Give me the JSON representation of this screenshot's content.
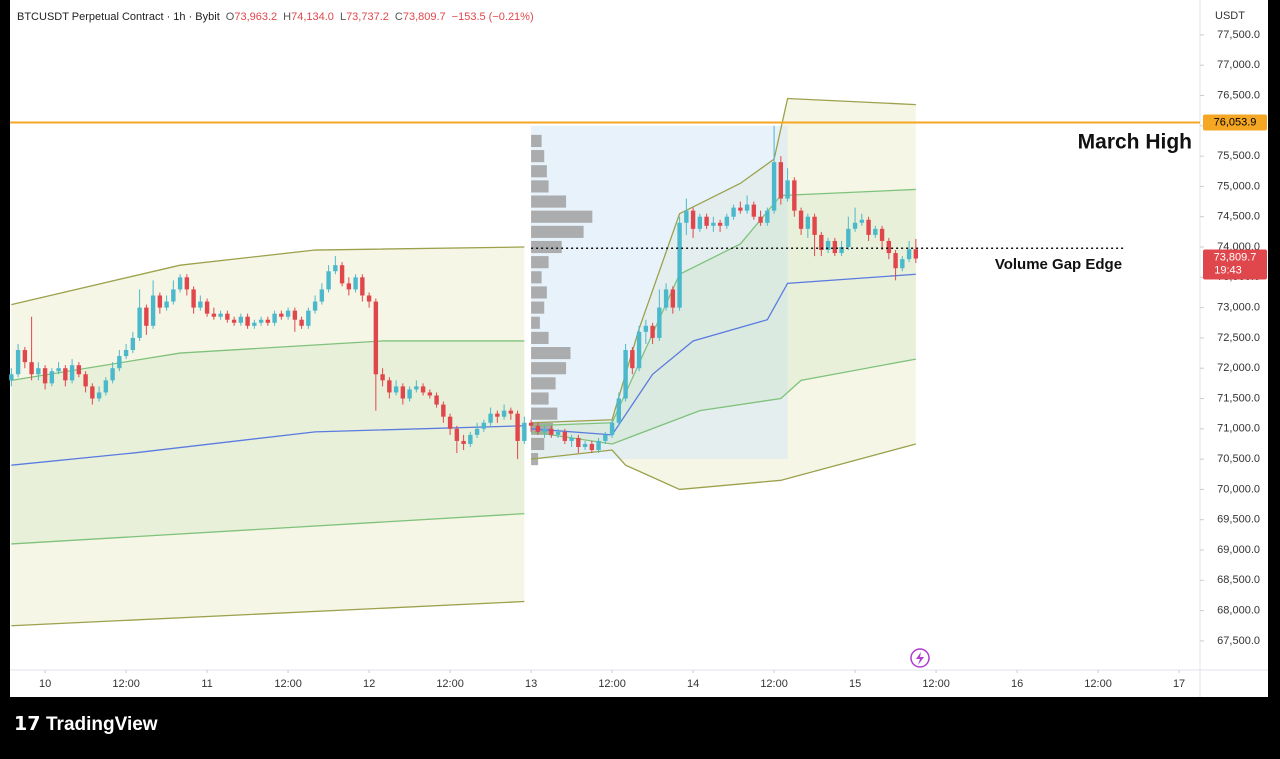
{
  "chart_data": {
    "type": "candlestick",
    "header": {
      "title": "BTCUSDT Perpetual Contract · 1h · Bybit",
      "items": [
        {
          "label": "O",
          "value": "73,963.2"
        },
        {
          "label": "H",
          "value": "74,134.0"
        },
        {
          "label": "L",
          "value": "73,737.2"
        },
        {
          "label": "C",
          "value": "73,809.7"
        }
      ],
      "change": "−153.5 (−0.21%)"
    },
    "y_unit": "USDT",
    "ylim": [
      67020,
      78076
    ],
    "yticks": [
      {
        "value": 67500,
        "label": "67,500.0"
      },
      {
        "value": 68000,
        "label": "68,000.0"
      },
      {
        "value": 68500,
        "label": "68,500.0"
      },
      {
        "value": 69000,
        "label": "69,000.0"
      },
      {
        "value": 69500,
        "label": "69,500.0"
      },
      {
        "value": 70000,
        "label": "70,000.0"
      },
      {
        "value": 70500,
        "label": "70,500.0"
      },
      {
        "value": 71000,
        "label": "71,000.0"
      },
      {
        "value": 71500,
        "label": "71,500.0"
      },
      {
        "value": 72000,
        "label": "72,000.0"
      },
      {
        "value": 72500,
        "label": "72,500.0"
      },
      {
        "value": 73000,
        "label": "73,000.0"
      },
      {
        "value": 73500,
        "label": "73,500.0"
      },
      {
        "value": 74000,
        "label": "74,000.0"
      },
      {
        "value": 74500,
        "label": "74,500.0"
      },
      {
        "value": 75000,
        "label": "75,000.0"
      },
      {
        "value": 75500,
        "label": "75,500.0"
      },
      {
        "value": 76000,
        "label": "76,000.0"
      },
      {
        "value": 76500,
        "label": "76,500.0"
      },
      {
        "value": 77000,
        "label": "77,000.0"
      },
      {
        "value": 77500,
        "label": "77,500.0"
      }
    ],
    "xlim": [
      -0.2,
      176.1
    ],
    "xticks": [
      {
        "value": 5,
        "label": "10"
      },
      {
        "value": 17,
        "label": "12:00"
      },
      {
        "value": 29,
        "label": "11"
      },
      {
        "value": 41,
        "label": "12:00"
      },
      {
        "value": 53,
        "label": "12"
      },
      {
        "value": 65,
        "label": "12:00"
      },
      {
        "value": 77,
        "label": "13"
      },
      {
        "value": 89,
        "label": "12:00"
      },
      {
        "value": 101,
        "label": "14"
      },
      {
        "value": 113,
        "label": "12:00"
      },
      {
        "value": 125,
        "label": "15"
      },
      {
        "value": 137,
        "label": "12:00"
      },
      {
        "value": 149,
        "label": "16"
      },
      {
        "value": 161,
        "label": "12:00"
      },
      {
        "value": 173,
        "label": "17"
      }
    ],
    "grid": false,
    "up_color": "#4cb8cc",
    "down_color": "#e0474c",
    "open": [
      71800,
      71900,
      72300,
      72100,
      71900,
      72000,
      71750,
      71950,
      72000,
      71800,
      72050,
      71900,
      71700,
      71500,
      71600,
      71800,
      72000,
      72200,
      72300,
      72500,
      73000,
      72700,
      73200,
      73000,
      73100,
      73300,
      73500,
      73300,
      73000,
      73100,
      72900,
      72850,
      72900,
      72800,
      72750,
      72850,
      72700,
      72750,
      72800,
      72750,
      72900,
      72850,
      72950,
      72800,
      72700,
      72950,
      73100,
      73300,
      73600,
      73700,
      73400,
      73300,
      73500,
      73200,
      73100,
      71900,
      71800,
      71600,
      71700,
      71500,
      71650,
      71700,
      71600,
      71550,
      71400,
      71200,
      71000,
      70800,
      70750,
      70900,
      71000,
      71100,
      71250,
      71200,
      71300,
      71250,
      70800,
      71100,
      71050,
      70950,
      71000,
      70900,
      70950,
      70800,
      70850,
      70700,
      70750,
      70650,
      70800,
      70900,
      71100,
      71500,
      72300,
      72000,
      72600,
      72700,
      72500,
      73000,
      73300,
      73000,
      74400,
      74600,
      74300,
      74500,
      74350,
      74400,
      74350,
      74500,
      74650,
      74600,
      74700,
      74500,
      74400,
      74600,
      75400,
      74800,
      75100,
      74600,
      74300,
      74500,
      74200,
      73950,
      74100,
      73900,
      74000,
      74300,
      74400,
      74450,
      74200,
      74300,
      74100,
      73900,
      73650,
      73800,
      73963.2
    ],
    "high": [
      72000,
      72400,
      72350,
      72850,
      72100,
      72050,
      72000,
      72100,
      72050,
      72150,
      72100,
      71950,
      71750,
      71700,
      71850,
      72100,
      72300,
      72400,
      72600,
      73300,
      73050,
      73450,
      73250,
      73200,
      73450,
      73550,
      73550,
      73350,
      73200,
      73150,
      73000,
      72950,
      72950,
      72850,
      72900,
      72900,
      72800,
      72850,
      72850,
      72950,
      72950,
      73000,
      73000,
      72850,
      73000,
      73200,
      73400,
      73700,
      73850,
      73750,
      73500,
      73550,
      73550,
      73250,
      73150,
      72000,
      71850,
      71800,
      71750,
      71700,
      71800,
      71750,
      71650,
      71600,
      71450,
      71250,
      71050,
      70900,
      70950,
      71100,
      71150,
      71350,
      71300,
      71400,
      71350,
      71300,
      71200,
      71150,
      71100,
      71050,
      71050,
      71000,
      71000,
      70900,
      70900,
      70800,
      70800,
      70850,
      70950,
      71150,
      71600,
      72400,
      72350,
      72700,
      72800,
      72750,
      73300,
      73400,
      73350,
      74500,
      74800,
      74650,
      74550,
      74550,
      74500,
      74450,
      74550,
      74700,
      74750,
      74850,
      74750,
      74600,
      74650,
      76000,
      75500,
      75300,
      75150,
      74650,
      74550,
      74550,
      74250,
      74150,
      74150,
      74100,
      74500,
      74650,
      74550,
      74500,
      74350,
      74350,
      74150,
      73950,
      73850,
      74100,
      74134.0
    ],
    "low": [
      71700,
      71850,
      72000,
      71800,
      71800,
      71650,
      71700,
      71900,
      71700,
      71750,
      71850,
      71600,
      71400,
      71450,
      71550,
      71750,
      71950,
      72150,
      72250,
      72450,
      72550,
      72650,
      72900,
      72950,
      73050,
      73250,
      73200,
      72900,
      72950,
      72850,
      72800,
      72800,
      72750,
      72700,
      72700,
      72650,
      72650,
      72700,
      72700,
      72700,
      72800,
      72800,
      72600,
      72650,
      72650,
      72900,
      73050,
      73250,
      73550,
      73350,
      73200,
      73250,
      73100,
      73000,
      71300,
      71700,
      71500,
      71550,
      71400,
      71450,
      71600,
      71550,
      71500,
      71350,
      71100,
      70900,
      70600,
      70650,
      70700,
      70850,
      70950,
      71050,
      71100,
      71150,
      71150,
      70500,
      70750,
      70950,
      70900,
      70850,
      70850,
      70850,
      70750,
      70700,
      70600,
      70650,
      70600,
      70600,
      70750,
      70850,
      71050,
      71450,
      71900,
      71950,
      72400,
      72400,
      72450,
      72950,
      72900,
      72950,
      74200,
      74150,
      74250,
      74300,
      74250,
      74250,
      74300,
      74450,
      74550,
      74550,
      74450,
      74350,
      74350,
      74550,
      74700,
      74750,
      74500,
      74200,
      74150,
      73850,
      73850,
      73900,
      73850,
      73850,
      73950,
      74250,
      74350,
      74100,
      74150,
      73950,
      73800,
      73450,
      73600,
      73750,
      73737.2
    ],
    "close": [
      71900,
      72300,
      72100,
      71900,
      72000,
      71750,
      71950,
      72000,
      71800,
      72050,
      71900,
      71700,
      71500,
      71600,
      71800,
      72000,
      72200,
      72300,
      72500,
      73000,
      72700,
      73200,
      73000,
      73100,
      73300,
      73500,
      73300,
      73000,
      73100,
      72900,
      72850,
      72900,
      72800,
      72750,
      72850,
      72700,
      72750,
      72800,
      72750,
      72900,
      72850,
      72950,
      72800,
      72700,
      72950,
      73100,
      73300,
      73600,
      73700,
      73400,
      73300,
      73500,
      73200,
      73100,
      71900,
      71800,
      71600,
      71700,
      71500,
      71650,
      71700,
      71600,
      71550,
      71400,
      71200,
      71000,
      70800,
      70750,
      70900,
      71000,
      71100,
      71250,
      71200,
      71300,
      71250,
      70800,
      71100,
      71050,
      70950,
      71000,
      70900,
      70950,
      70800,
      70850,
      70700,
      70750,
      70650,
      70800,
      70900,
      71100,
      71500,
      72300,
      72000,
      72600,
      72700,
      72500,
      73000,
      73300,
      73000,
      74400,
      74600,
      74300,
      74500,
      74350,
      74400,
      74350,
      74500,
      74650,
      74600,
      74700,
      74500,
      74400,
      74600,
      75400,
      74800,
      75100,
      74600,
      74300,
      74500,
      74200,
      73950,
      74100,
      73900,
      74000,
      74300,
      74400,
      74450,
      74200,
      74300,
      74100,
      73900,
      73650,
      73800,
      73963.2,
      73809.7
    ],
    "overlays": [
      {
        "color": "#9ca14c",
        "x": [
          0,
          25,
          45,
          76
        ],
        "values": [
          73050,
          73700,
          73950,
          74000
        ]
      },
      {
        "color": "#7fc27c",
        "x": [
          0,
          25,
          55,
          76
        ],
        "values": [
          71800,
          72250,
          72450,
          72450
        ]
      },
      {
        "color": "#5b7be0",
        "x": [
          0,
          18,
          45,
          76
        ],
        "values": [
          70400,
          70600,
          70950,
          71050
        ]
      },
      {
        "color": "#7fc27c",
        "x": [
          0,
          76
        ],
        "values": [
          69100,
          69600
        ]
      },
      {
        "color": "#9ca14c",
        "x": [
          0,
          76
        ],
        "values": [
          67750,
          68150
        ]
      },
      {
        "color": "#9ca14c",
        "x": [
          77,
          89,
          93,
          99,
          108,
          113,
          115,
          134
        ],
        "values": [
          71100,
          71150,
          72650,
          74550,
          75050,
          75450,
          76450,
          76350
        ]
      },
      {
        "color": "#7fc27c",
        "x": [
          77,
          89,
          99,
          108,
          114,
          134
        ],
        "values": [
          71050,
          71100,
          73550,
          74050,
          74850,
          74950
        ]
      },
      {
        "color": "#5b7be0",
        "x": [
          77,
          89,
          95,
          101,
          112,
          115,
          134
        ],
        "values": [
          71000,
          70900,
          71900,
          72450,
          72800,
          73400,
          73550
        ]
      },
      {
        "color": "#7fc27c",
        "x": [
          77,
          89,
          102,
          114,
          117,
          134
        ],
        "values": [
          70950,
          70750,
          71300,
          71500,
          71800,
          72150
        ]
      },
      {
        "color": "#9ca14c",
        "x": [
          77,
          89,
          91,
          99,
          114,
          134
        ],
        "values": [
          70500,
          70650,
          70400,
          70000,
          70150,
          70750
        ]
      }
    ],
    "range_box": {
      "x": [
        77,
        115
      ],
      "y": [
        70500,
        76000
      ],
      "color": "#d6e8f5"
    },
    "volume_profile": {
      "color": "#9a9a9a",
      "x_start": 77,
      "max": 80,
      "levels": [
        70500,
        70750,
        71000,
        71250,
        71500,
        71750,
        72000,
        72250,
        72500,
        72750,
        73000,
        73250,
        73500,
        73750,
        74000,
        74250,
        74500,
        74750,
        75000,
        75250,
        75500,
        75750
      ],
      "values": [
        8,
        15,
        25,
        30,
        20,
        28,
        40,
        45,
        20,
        10,
        15,
        18,
        12,
        20,
        35,
        60,
        70,
        40,
        20,
        18,
        15,
        12
      ]
    },
    "march_high": {
      "value": 76053.9,
      "label": "76,053.9",
      "text": "March High",
      "color": "#f5a623"
    },
    "volume_gap_edge": {
      "value": 73980,
      "x": [
        77,
        165
      ],
      "text": "Volume Gap Edge"
    },
    "last_price": {
      "value": 73809.7,
      "label": "73,809.7",
      "countdown": "19:43",
      "color": "#e0474c"
    }
  },
  "branding": "TradingView"
}
